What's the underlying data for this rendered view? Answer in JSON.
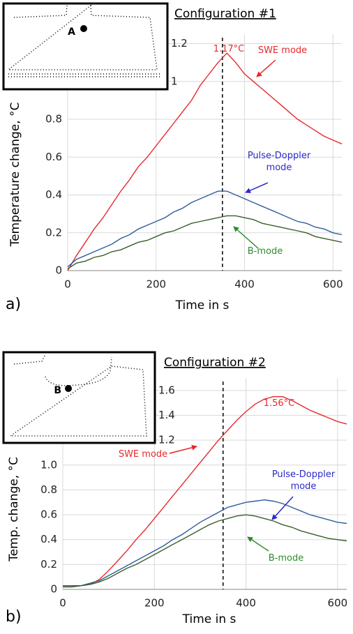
{
  "chart_data": [
    {
      "type": "line",
      "title": "Configuration #1",
      "panel_label": "a)",
      "x_label": "Time in s",
      "y_label": "Temperature change, °C",
      "inset_label": "A",
      "peak_label": "1.17°C",
      "vline": 350,
      "grid": true,
      "xlim": [
        0,
        620
      ],
      "ylim": [
        0,
        1.25
      ],
      "xticks": [
        0,
        200,
        400,
        600
      ],
      "yticks": [
        0,
        0.2,
        0.4,
        0.6,
        0.8,
        1,
        1.2
      ],
      "x": [
        0,
        20,
        40,
        60,
        80,
        100,
        120,
        140,
        160,
        180,
        200,
        220,
        240,
        260,
        280,
        300,
        320,
        340,
        360,
        380,
        400,
        420,
        440,
        460,
        480,
        500,
        520,
        540,
        560,
        580,
        600,
        620
      ],
      "series": [
        {
          "name": "SWE mode",
          "color": "#e8282b",
          "values": [
            0,
            0.08,
            0.15,
            0.22,
            0.28,
            0.35,
            0.42,
            0.48,
            0.55,
            0.6,
            0.66,
            0.72,
            0.78,
            0.84,
            0.9,
            0.98,
            1.04,
            1.1,
            1.15,
            1.1,
            1.04,
            1.0,
            0.96,
            0.92,
            0.88,
            0.84,
            0.8,
            0.77,
            0.74,
            0.71,
            0.69,
            0.67
          ]
        },
        {
          "name": "Pulse-Doppler mode",
          "color": "#2e5d9a",
          "values": [
            0.02,
            0.06,
            0.08,
            0.1,
            0.12,
            0.14,
            0.17,
            0.19,
            0.22,
            0.24,
            0.26,
            0.28,
            0.31,
            0.33,
            0.36,
            0.38,
            0.4,
            0.42,
            0.42,
            0.4,
            0.38,
            0.36,
            0.34,
            0.32,
            0.3,
            0.28,
            0.26,
            0.25,
            0.23,
            0.22,
            0.2,
            0.19
          ]
        },
        {
          "name": "B-mode",
          "color": "#3a5e2a",
          "values": [
            0.01,
            0.04,
            0.05,
            0.07,
            0.08,
            0.1,
            0.11,
            0.13,
            0.15,
            0.16,
            0.18,
            0.2,
            0.21,
            0.23,
            0.25,
            0.26,
            0.27,
            0.28,
            0.29,
            0.29,
            0.28,
            0.27,
            0.25,
            0.24,
            0.23,
            0.22,
            0.21,
            0.2,
            0.18,
            0.17,
            0.16,
            0.15
          ]
        }
      ]
    },
    {
      "type": "line",
      "title": "Configuration #2",
      "panel_label": "b)",
      "x_label": "Time in s",
      "y_label": "Temp. change, °C",
      "inset_label": "B",
      "peak_label": "1.56°C",
      "vline": 350,
      "grid": true,
      "xlim": [
        0,
        620
      ],
      "ylim": [
        0,
        1.7
      ],
      "xticks": [
        0,
        200,
        400,
        600
      ],
      "yticks": [
        0,
        0.2,
        0.4,
        0.6,
        0.8,
        {
          "value": 1,
          "label": "1.0"
        },
        1.2,
        1.4,
        1.6
      ],
      "x": [
        0,
        20,
        40,
        60,
        80,
        100,
        120,
        140,
        160,
        180,
        200,
        220,
        240,
        260,
        280,
        300,
        320,
        340,
        360,
        380,
        400,
        420,
        440,
        460,
        480,
        500,
        520,
        540,
        560,
        580,
        600,
        620
      ],
      "series": [
        {
          "name": "SWE mode",
          "color": "#e8282b",
          "values": [
            0.02,
            0.02,
            0.03,
            0.04,
            0.08,
            0.15,
            0.23,
            0.31,
            0.4,
            0.48,
            0.57,
            0.66,
            0.75,
            0.84,
            0.93,
            1.02,
            1.11,
            1.2,
            1.28,
            1.36,
            1.43,
            1.49,
            1.53,
            1.55,
            1.55,
            1.52,
            1.48,
            1.44,
            1.41,
            1.38,
            1.35,
            1.33
          ]
        },
        {
          "name": "Pulse-Doppler mode",
          "color": "#2e5d9a",
          "values": [
            0.03,
            0.03,
            0.03,
            0.05,
            0.07,
            0.11,
            0.15,
            0.19,
            0.23,
            0.27,
            0.31,
            0.35,
            0.4,
            0.44,
            0.49,
            0.54,
            0.58,
            0.62,
            0.66,
            0.68,
            0.7,
            0.71,
            0.72,
            0.71,
            0.69,
            0.66,
            0.63,
            0.6,
            0.58,
            0.56,
            0.54,
            0.53
          ]
        },
        {
          "name": "B-mode",
          "color": "#3a5e2a",
          "values": [
            0.02,
            0.02,
            0.03,
            0.04,
            0.06,
            0.09,
            0.13,
            0.17,
            0.2,
            0.24,
            0.28,
            0.32,
            0.36,
            0.4,
            0.44,
            0.48,
            0.52,
            0.55,
            0.57,
            0.59,
            0.6,
            0.59,
            0.57,
            0.55,
            0.52,
            0.5,
            0.47,
            0.45,
            0.43,
            0.41,
            0.4,
            0.39
          ]
        }
      ]
    }
  ]
}
